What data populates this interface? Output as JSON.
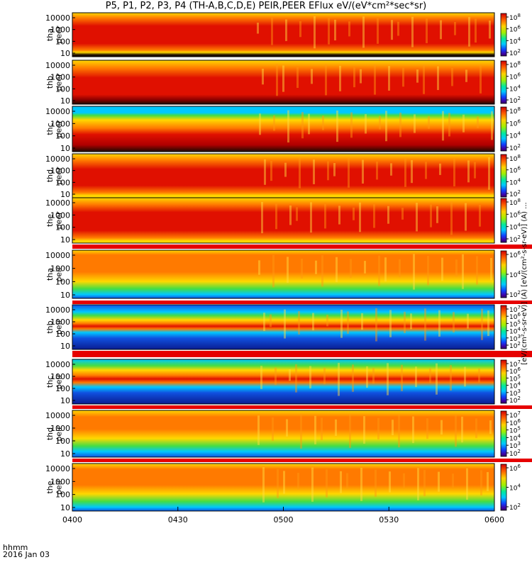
{
  "figure": {
    "title": "P5, P1, P2, P3, P4 (TH-A,B,C,D,E) PEIR,PEER EFlux eV/(eV*cm²*sec*sr)",
    "xlabel_line1": "hhmm",
    "xlabel_line2": "2016 Jan 03",
    "colorbar_unit_label": "[eV/(cm²-s-sr-eV)] (A) [eV/(cm²-s-sr-eV)] (A) ..."
  },
  "chart_data": {
    "type": "heatmap",
    "x_ticks": [
      "0400",
      "0430",
      "0500",
      "0530",
      "0600"
    ],
    "x_range": [
      "0400",
      "0600"
    ],
    "y_axis": "log energy (eV)",
    "y_ticks": [
      "10",
      "100",
      "1000",
      "10000"
    ],
    "panels": [
      {
        "probe": "tha",
        "species": "peer",
        "colorbar_ticks": [
          "10^8",
          "10^6",
          "10^4",
          "10^2"
        ]
      },
      {
        "probe": "thb",
        "species": "peer",
        "colorbar_ticks": [
          "10^8",
          "10^6",
          "10^4",
          "10^2"
        ]
      },
      {
        "probe": "thc",
        "species": "peer",
        "colorbar_ticks": [
          "10^8",
          "10^6",
          "10^4",
          "10^2"
        ]
      },
      {
        "probe": "thd",
        "species": "peer",
        "colorbar_ticks": [
          "10^8",
          "10^6",
          "10^4",
          "10^2"
        ]
      },
      {
        "probe": "the",
        "species": "peer",
        "colorbar_ticks": [
          "10^8",
          "10^6",
          "10^4",
          "10^2"
        ]
      },
      {
        "probe": "tha",
        "species": "peir",
        "colorbar_ticks": [
          "10^6",
          "10^4",
          "10^2"
        ]
      },
      {
        "probe": "thb",
        "species": "peir",
        "colorbar_ticks": [
          "10^7",
          "10^6",
          "10^5",
          "10^4",
          "10^3",
          "10^2"
        ]
      },
      {
        "probe": "thc",
        "species": "peir",
        "colorbar_ticks": [
          "10^7",
          "10^6",
          "10^5",
          "10^4",
          "10^3",
          "10^2"
        ]
      },
      {
        "probe": "thd",
        "species": "peir",
        "colorbar_ticks": [
          "10^7",
          "10^6",
          "10^5",
          "10^4",
          "10^3",
          "10^2"
        ]
      },
      {
        "probe": "the",
        "species": "peir",
        "colorbar_ticks": [
          "10^6",
          "10^4",
          "10^2"
        ]
      }
    ]
  }
}
